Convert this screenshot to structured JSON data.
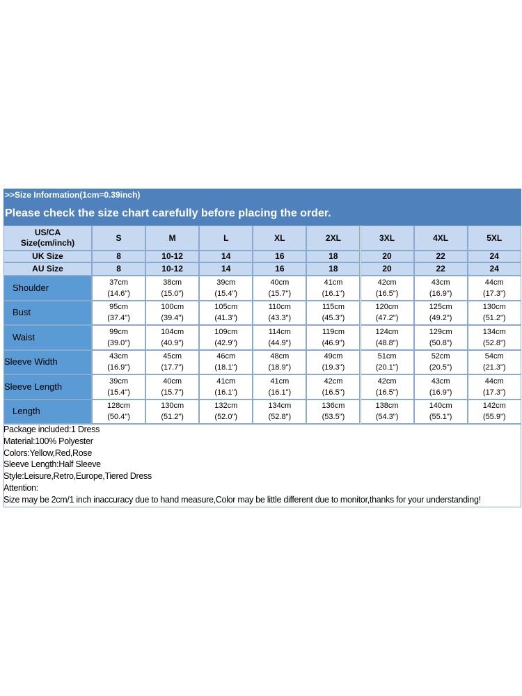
{
  "header": {
    "info": ">>Size Information(1cm=0.39inch)",
    "notice": "Please check the size chart carefully before placing the order."
  },
  "table": {
    "corner": [
      "US/CA",
      "Size(cm/inch)"
    ],
    "sizes": [
      "S",
      "M",
      "L",
      "XL",
      "2XL",
      "3XL",
      "4XL",
      "5XL"
    ],
    "uk": {
      "label": "UK Size",
      "values": [
        "8",
        "10-12",
        "14",
        "16",
        "18",
        "20",
        "22",
        "24"
      ]
    },
    "au": {
      "label": "AU Size",
      "values": [
        "8",
        "10-12",
        "14",
        "16",
        "18",
        "20",
        "22",
        "24"
      ]
    },
    "rows": [
      {
        "label": "Shoulder",
        "cells": [
          [
            "37cm",
            "(14.6\")"
          ],
          [
            "38cm",
            "(15.0\")"
          ],
          [
            "39cm",
            "(15.4\")"
          ],
          [
            "40cm",
            "(15.7\")"
          ],
          [
            "41cm",
            "(16.1\")"
          ],
          [
            "42cm",
            "(16.5\")"
          ],
          [
            "43cm",
            "(16.9\")"
          ],
          [
            "44cm",
            "(17.3\")"
          ]
        ]
      },
      {
        "label": "Bust",
        "cells": [
          [
            "95cm",
            "(37.4\")"
          ],
          [
            "100cm",
            "(39.4\")"
          ],
          [
            "105cm",
            "(41.3\")"
          ],
          [
            "110cm",
            "(43.3\")"
          ],
          [
            "115cm",
            "(45.3\")"
          ],
          [
            "120cm",
            "(47.2\")"
          ],
          [
            "125cm",
            "(49.2\")"
          ],
          [
            "130cm",
            "(51.2\")"
          ]
        ]
      },
      {
        "label": "Waist",
        "cells": [
          [
            "99cm",
            "(39.0\")"
          ],
          [
            "104cm",
            "(40.9\")"
          ],
          [
            "109cm",
            "(42.9\")"
          ],
          [
            "114cm",
            "(44.9\")"
          ],
          [
            "119cm",
            "(46.9\")"
          ],
          [
            "124cm",
            "(48.8\")"
          ],
          [
            "129cm",
            "(50.8\")"
          ],
          [
            "134cm",
            "(52.8\")"
          ]
        ]
      },
      {
        "label": "Sleeve Width",
        "cells": [
          [
            "43cm",
            "(16.9\")"
          ],
          [
            "45cm",
            "(17.7\")"
          ],
          [
            "46cm",
            "(18.1\")"
          ],
          [
            "48cm",
            "(18.9\")"
          ],
          [
            "49cm",
            "(19.3\")"
          ],
          [
            "51cm",
            "(20.1\")"
          ],
          [
            "52cm",
            "(20.5\")"
          ],
          [
            "54cm",
            "(21.3\")"
          ]
        ]
      },
      {
        "label": "Sleeve Length",
        "cells": [
          [
            "39cm",
            "(15.4\")"
          ],
          [
            "40cm",
            "(15.7\")"
          ],
          [
            "41cm",
            "(16.1\")"
          ],
          [
            "41cm",
            "(16.1\")"
          ],
          [
            "42cm",
            "(16.5\")"
          ],
          [
            "42cm",
            "(16.5\")"
          ],
          [
            "43cm",
            "(16.9\")"
          ],
          [
            "44cm",
            "(17.3\")"
          ]
        ]
      },
      {
        "label": "Length",
        "cells": [
          [
            "128cm",
            "(50.4\")"
          ],
          [
            "130cm",
            "(51.2\")"
          ],
          [
            "132cm",
            "(52.0\")"
          ],
          [
            "134cm",
            "(52.8\")"
          ],
          [
            "136cm",
            "(53.5\")"
          ],
          [
            "138cm",
            "(54.3\")"
          ],
          [
            "140cm",
            "(55.1\")"
          ],
          [
            "142cm",
            "(55.9\")"
          ]
        ]
      }
    ]
  },
  "notes": [
    "Package included:1 Dress",
    "Material:100% Polyester",
    "Colors:Yellow,Red,Rose",
    "Sleeve Length:Half Sleeve",
    "Style:Leisure,Retro,Europe,Tiered Dress",
    "Attention:",
    "Size may be 2cm/1 inch inaccuracy due to hand measure,Color may be little different due to monitor,thanks for your understanding!"
  ]
}
